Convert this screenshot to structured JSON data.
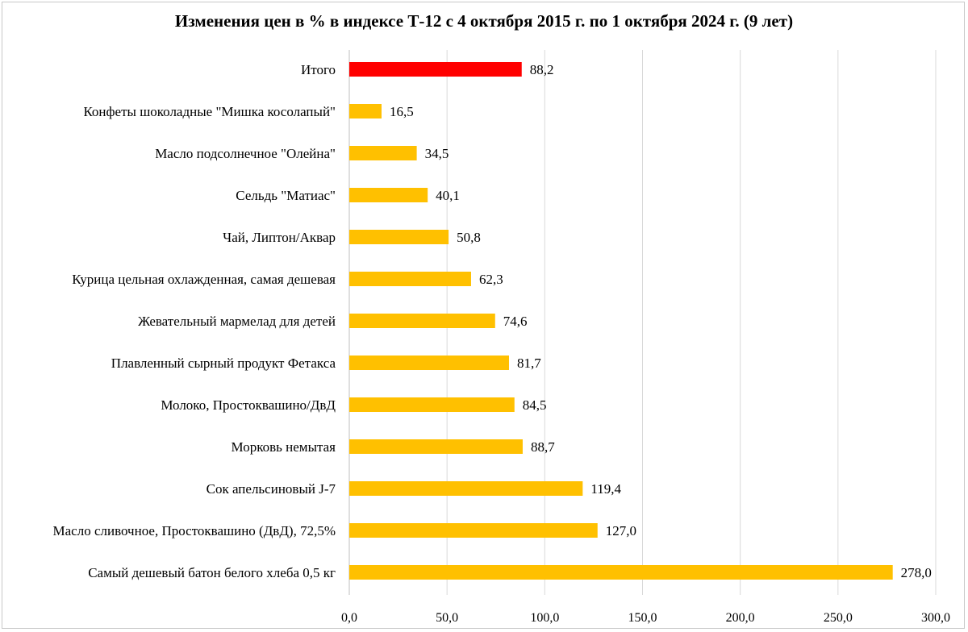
{
  "chart_data": {
    "type": "bar",
    "orientation": "horizontal",
    "title": "Изменения цен в % в индексе Т-12 с 4 октября 2015 г. по 1 октября 2024 г. (9 лет)",
    "xlabel": "",
    "ylabel": "",
    "xlim": [
      0,
      300
    ],
    "xticks": [
      "0,0",
      "50,0",
      "100,0",
      "150,0",
      "200,0",
      "250,0",
      "300,0"
    ],
    "xtick_values": [
      0,
      50,
      100,
      150,
      200,
      250,
      300
    ],
    "grid": "vertical",
    "legend": "none",
    "categories": [
      "Итого",
      "Конфеты шоколадные \"Мишка косолапый\"",
      "Масло подсолнечное \"Олейна\"",
      "Сельдь \"Матиас\"",
      "Чай, Липтон/Аквар",
      "Курица цельная охлажденная, самая дешевая",
      "Жевательный мармелад для детей",
      "Плавленный сырный продукт Фетакса",
      "Молоко, Простоквашино/ДвД",
      "Морковь немытая",
      "Сок апельсиновый  J-7",
      "Масло сливочное, Простоквашино (ДвД), 72,5%",
      "Самый дешевый батон белого хлеба 0,5 кг"
    ],
    "values": [
      88.2,
      16.5,
      34.5,
      40.1,
      50.8,
      62.3,
      74.6,
      81.7,
      84.5,
      88.7,
      119.4,
      127.0,
      278.0
    ],
    "data_labels": [
      "88,2",
      "16,5",
      "34,5",
      "40,1",
      "50,8",
      "62,3",
      "74,6",
      "81,7",
      "84,5",
      "88,7",
      "119,4",
      "127,0",
      "278,0"
    ],
    "colors": {
      "highlight": "#ff0000",
      "bar": "#ffc000",
      "grid": "#d9d9d9",
      "axis": "#bfbfbf",
      "text": "#000000"
    },
    "highlight_index": 0
  }
}
